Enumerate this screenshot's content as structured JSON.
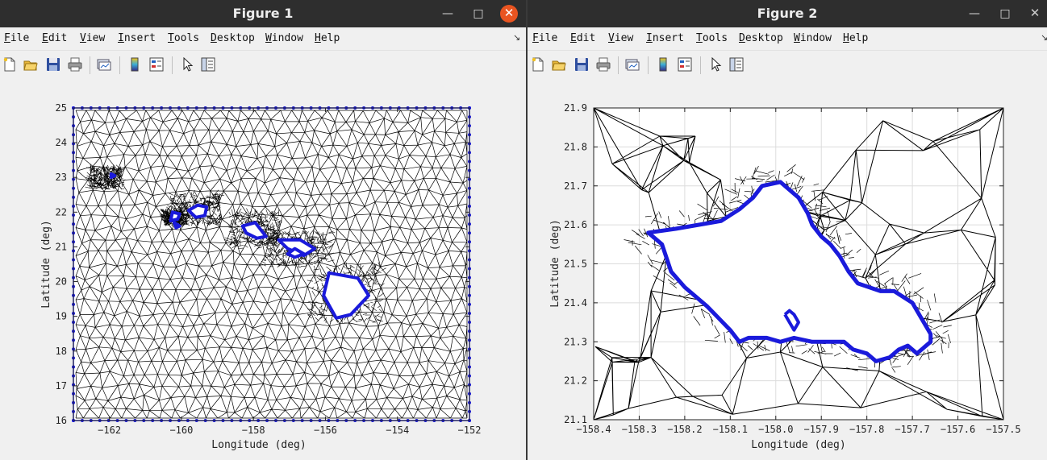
{
  "windows": [
    {
      "title": "Figure 1",
      "menu": [
        "File",
        "Edit",
        "View",
        "Insert",
        "Tools",
        "Desktop",
        "Window",
        "Help"
      ],
      "dock_glyph": "↘"
    },
    {
      "title": "Figure 2",
      "menu": [
        "File",
        "Edit",
        "View",
        "Insert",
        "Tools",
        "Desktop",
        "Window",
        "Help"
      ],
      "dock_glyph": "↘"
    }
  ],
  "toolbar_icons": [
    "new-figure-icon",
    "open-file-icon",
    "save-icon",
    "print-icon",
    "link-plot-icon",
    "insert-colorbar-icon",
    "insert-legend-icon",
    "edit-plot-icon",
    "property-inspector-icon"
  ],
  "colors": {
    "mesh": "#000000",
    "coastline": "#1a1adb",
    "axes_bg": "#ffffff",
    "figure_bg": "#f0f0f0",
    "titlebar": "#2e2e2e",
    "close_active": "#e95420"
  },
  "chart_data": [
    {
      "type": "scatter",
      "title": "",
      "xlabel": "Longitude (deg)",
      "ylabel": "Latitude (deg)",
      "xlim": [
        -163,
        -152
      ],
      "ylim": [
        16,
        25
      ],
      "xticks": [
        -162,
        -160,
        -158,
        -156,
        -154,
        -152
      ],
      "yticks": [
        16,
        17,
        18,
        19,
        20,
        21,
        22,
        23,
        24,
        25
      ],
      "grid": false,
      "series": [
        {
          "role": "boundary",
          "x": [
            -163,
            -152,
            -152,
            -163,
            -163
          ],
          "y": [
            16,
            16,
            25,
            25,
            16
          ]
        },
        {
          "role": "coastline",
          "islands": [
            {
              "x": [
                -159.8,
                -159.55,
                -159.3,
                -159.35,
                -159.6,
                -159.8
              ],
              "y": [
                22.05,
                22.2,
                22.15,
                21.9,
                21.85,
                22.05
              ]
            },
            {
              "x": [
                -160.25,
                -160.05,
                -160.1,
                -160.3,
                -160.25
              ],
              "y": [
                22.0,
                21.95,
                21.8,
                21.75,
                22.0
              ]
            },
            {
              "x": [
                -158.3,
                -157.95,
                -157.65,
                -157.9,
                -158.2,
                -158.3
              ],
              "y": [
                21.6,
                21.7,
                21.3,
                21.25,
                21.4,
                21.6
              ]
            },
            {
              "x": [
                -157.3,
                -156.7,
                -156.3,
                -156.6,
                -157.05,
                -157.3
              ],
              "y": [
                21.2,
                21.2,
                20.95,
                20.75,
                20.95,
                21.2
              ]
            },
            {
              "x": [
                -156.85,
                -156.6,
                -156.85,
                -157.05,
                -156.85
              ],
              "y": [
                20.95,
                20.8,
                20.7,
                20.8,
                20.95
              ]
            },
            {
              "x": [
                -155.9,
                -155.1,
                -154.8,
                -155.3,
                -155.7,
                -156.05,
                -155.9
              ],
              "y": [
                20.25,
                20.1,
                19.6,
                19.05,
                18.95,
                19.6,
                20.25
              ]
            },
            {
              "x": [
                -160.2,
                -160.05,
                -160.15,
                -160.2
              ],
              "y": [
                21.7,
                21.6,
                21.55,
                21.7
              ]
            },
            {
              "x": [
                -161.95,
                -161.85,
                -161.95,
                -161.95
              ],
              "y": [
                23.1,
                23.05,
                23.0,
                23.1
              ]
            }
          ]
        }
      ]
    },
    {
      "type": "scatter",
      "title": "",
      "xlabel": "Longitude (deg)",
      "ylabel": "Latitude (deg)",
      "xlim": [
        -158.4,
        -157.5
      ],
      "ylim": [
        21.1,
        21.9
      ],
      "xticks": [
        -158.4,
        -158.3,
        -158.2,
        -158.1,
        -158,
        -157.9,
        -157.8,
        -157.7,
        -157.6,
        -157.5
      ],
      "yticks": [
        21.1,
        21.2,
        21.3,
        21.4,
        21.5,
        21.6,
        21.7,
        21.8,
        21.9
      ],
      "grid": true,
      "series": [
        {
          "role": "coastline",
          "x": [
            -158.28,
            -158.22,
            -158.17,
            -158.12,
            -158.08,
            -158.05,
            -158.03,
            -157.99,
            -157.97,
            -157.95,
            -157.93,
            -157.92,
            -157.9,
            -157.88,
            -157.86,
            -157.84,
            -157.82,
            -157.77,
            -157.74,
            -157.7,
            -157.67,
            -157.66,
            -157.66,
            -157.69,
            -157.71,
            -157.73,
            -157.75,
            -157.78,
            -157.8,
            -157.83,
            -157.85,
            -157.88,
            -157.92,
            -157.96,
            -157.99,
            -158.02,
            -158.06,
            -158.08,
            -158.1,
            -158.15,
            -158.2,
            -158.23,
            -158.25,
            -158.28
          ],
          "y": [
            21.58,
            21.59,
            21.6,
            21.61,
            21.64,
            21.67,
            21.7,
            21.71,
            21.69,
            21.67,
            21.63,
            21.6,
            21.57,
            21.55,
            21.52,
            21.48,
            21.45,
            21.43,
            21.43,
            21.4,
            21.34,
            21.32,
            21.3,
            21.27,
            21.29,
            21.28,
            21.26,
            21.25,
            21.27,
            21.28,
            21.3,
            21.3,
            21.3,
            21.31,
            21.3,
            21.31,
            21.31,
            21.3,
            21.33,
            21.39,
            21.44,
            21.48,
            21.55,
            21.58
          ]
        },
        {
          "role": "coastline-inlet",
          "x": [
            -157.98,
            -157.97,
            -157.96,
            -157.95,
            -157.96,
            -157.98
          ],
          "y": [
            21.37,
            21.38,
            21.37,
            21.35,
            21.33,
            21.37
          ]
        }
      ]
    }
  ]
}
